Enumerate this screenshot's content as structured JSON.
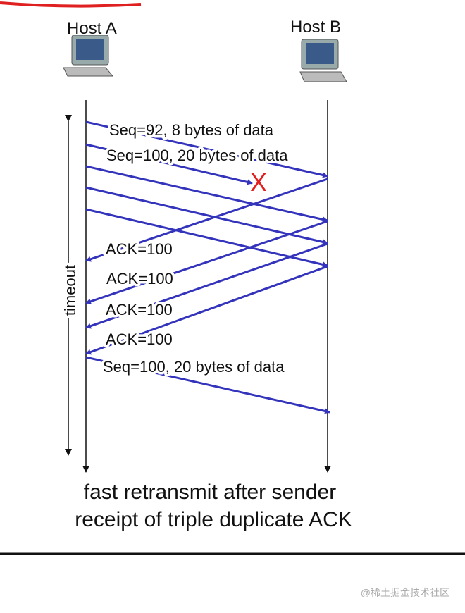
{
  "hosts": [
    {
      "label": "Host A"
    },
    {
      "label": "Host B"
    }
  ],
  "messages": [
    "Seq=92, 8 bytes of data",
    "Seq=100, 20 bytes of data",
    "ACK=100",
    "ACK=100",
    "ACK=100",
    "ACK=100",
    "Seq=100, 20 bytes of data"
  ],
  "loss_mark": "X",
  "timeout": "timeout",
  "caption": [
    "fast retransmit after sender",
    "receipt of triple duplicate ACK"
  ],
  "watermark": "@稀土掘金技术社区"
}
